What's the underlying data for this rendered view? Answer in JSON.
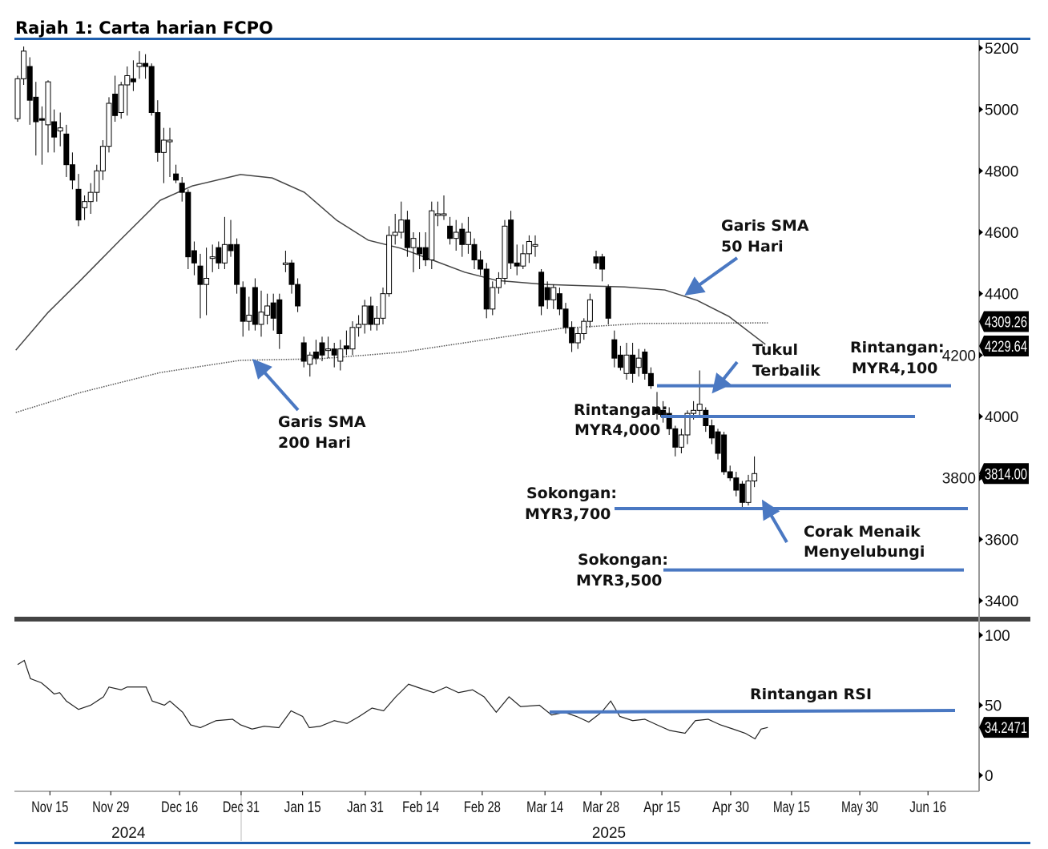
{
  "title": "Rajah 1: Carta harian FCPO",
  "colors": {
    "accent": "#1f5fae",
    "annotation": "#4a78c2",
    "candle_down": "#000000",
    "candle_up": "#ffffff"
  },
  "chart_data": {
    "type": "candlestick",
    "title": "Rajah 1: Carta harian FCPO",
    "price_axis": {
      "ylim": [
        3350,
        5230
      ],
      "ticks": [
        3400,
        3600,
        3800,
        4000,
        4200,
        4400,
        4600,
        4800,
        5000,
        5200
      ]
    },
    "rsi_axis": {
      "ylim": [
        0,
        100
      ],
      "ticks": [
        0,
        50,
        100
      ]
    },
    "value_tags": {
      "sma200": "4309.26",
      "sma50": "4229.64",
      "last_price": "3814.00",
      "rsi": "34.2471"
    },
    "x_labels": [
      {
        "label": "Nov 15",
        "index": 5.3
      },
      {
        "label": "Nov 29",
        "index": 15.3
      },
      {
        "label": "Dec 16",
        "index": 26.6
      },
      {
        "label": "Dec 31",
        "index": 36.7
      },
      {
        "label": "Jan 15",
        "index": 46.8
      },
      {
        "label": "Jan 31",
        "index": 57.1
      },
      {
        "label": "Feb 14",
        "index": 66.2
      },
      {
        "label": "Feb 28",
        "index": 76.3
      },
      {
        "label": "Mar 14",
        "index": 86.6
      },
      {
        "label": "Mar 28",
        "index": 95.8
      },
      {
        "label": "Apr 15",
        "index": 105.8
      },
      {
        "label": "Apr 30",
        "index": 117.1
      },
      {
        "label": "May 15",
        "index": 127.1
      },
      {
        "label": "May 30",
        "index": 138.3
      },
      {
        "label": "Jun 16",
        "index": 149.5
      }
    ],
    "years": [
      {
        "label": "2024",
        "index": 18.2
      },
      {
        "label": "2025",
        "index": 97.1
      }
    ],
    "candles_ohlc": [
      [
        4970,
        5110,
        4960,
        5100
      ],
      [
        5100,
        5205,
        5080,
        5190
      ],
      [
        5140,
        5170,
        4950,
        5030
      ],
      [
        5040,
        5090,
        4850,
        4960
      ],
      [
        4970,
        5010,
        4820,
        4965
      ],
      [
        4950,
        5095,
        4860,
        5090
      ],
      [
        4960,
        5000,
        4860,
        4910
      ],
      [
        4930,
        4990,
        4880,
        4940
      ],
      [
        4920,
        4950,
        4780,
        4820
      ],
      [
        4820,
        4860,
        4740,
        4770
      ],
      [
        4740,
        4790,
        4620,
        4640
      ],
      [
        4680,
        4720,
        4640,
        4700
      ],
      [
        4700,
        4760,
        4660,
        4730
      ],
      [
        4730,
        4820,
        4700,
        4800
      ],
      [
        4800,
        4900,
        4770,
        4880
      ],
      [
        4880,
        5040,
        4860,
        5020
      ],
      [
        5050,
        5110,
        4960,
        4980
      ],
      [
        4990,
        5090,
        4970,
        5080
      ],
      [
        5080,
        5140,
        4980,
        5110
      ],
      [
        5100,
        5160,
        5060,
        5090
      ],
      [
        5140,
        5190,
        5100,
        5150
      ],
      [
        5150,
        5180,
        5100,
        5140
      ],
      [
        5140,
        5150,
        4980,
        4990
      ],
      [
        4990,
        5030,
        4830,
        4860
      ],
      [
        4860,
        4940,
        4760,
        4900
      ],
      [
        4900,
        4940,
        4780,
        4900
      ],
      [
        4790,
        4820,
        4760,
        4770
      ],
      [
        4760,
        4780,
        4700,
        4730
      ],
      [
        4730,
        4740,
        4480,
        4520
      ],
      [
        4540,
        4570,
        4460,
        4500
      ],
      [
        4490,
        4530,
        4320,
        4430
      ],
      [
        4430,
        4550,
        4330,
        4450
      ],
      [
        4520,
        4560,
        4470,
        4520
      ],
      [
        4550,
        4570,
        4480,
        4500
      ],
      [
        4500,
        4650,
        4480,
        4560
      ],
      [
        4560,
        4640,
        4520,
        4540
      ],
      [
        4560,
        4580,
        4400,
        4430
      ],
      [
        4420,
        4440,
        4260,
        4310
      ],
      [
        4310,
        4390,
        4280,
        4330
      ],
      [
        4420,
        4450,
        4280,
        4300
      ],
      [
        4300,
        4410,
        4260,
        4340
      ],
      [
        4330,
        4400,
        4300,
        4360
      ],
      [
        4370,
        4400,
        4280,
        4320
      ],
      [
        4380,
        4400,
        4220,
        4270
      ],
      [
        4500,
        4540,
        4470,
        4500
      ],
      [
        4500,
        4510,
        4400,
        4430
      ],
      [
        4430,
        4450,
        4340,
        4360
      ],
      [
        4240,
        4260,
        4160,
        4180
      ],
      [
        4170,
        4210,
        4130,
        4200
      ],
      [
        4210,
        4250,
        4170,
        4190
      ],
      [
        4240,
        4260,
        4180,
        4200
      ],
      [
        4220,
        4260,
        4190,
        4220
      ],
      [
        4220,
        4240,
        4160,
        4200
      ],
      [
        4180,
        4250,
        4150,
        4220
      ],
      [
        4230,
        4280,
        4200,
        4220
      ],
      [
        4220,
        4310,
        4200,
        4290
      ],
      [
        4290,
        4330,
        4260,
        4300
      ],
      [
        4300,
        4380,
        4270,
        4360
      ],
      [
        4360,
        4390,
        4280,
        4300
      ],
      [
        4300,
        4360,
        4280,
        4320
      ],
      [
        4320,
        4420,
        4300,
        4400
      ],
      [
        4400,
        4620,
        4390,
        4590
      ],
      [
        4590,
        4660,
        4560,
        4600
      ],
      [
        4600,
        4700,
        4580,
        4640
      ],
      [
        4640,
        4670,
        4520,
        4550
      ],
      [
        4550,
        4600,
        4470,
        4580
      ],
      [
        4550,
        4600,
        4480,
        4530
      ],
      [
        4550,
        4600,
        4490,
        4510
      ],
      [
        4510,
        4700,
        4480,
        4670
      ],
      [
        4660,
        4700,
        4620,
        4660
      ],
      [
        4660,
        4720,
        4640,
        4660
      ],
      [
        4620,
        4650,
        4560,
        4580
      ],
      [
        4580,
        4640,
        4540,
        4600
      ],
      [
        4610,
        4630,
        4520,
        4560
      ],
      [
        4560,
        4650,
        4530,
        4600
      ],
      [
        4560,
        4580,
        4480,
        4510
      ],
      [
        4510,
        4540,
        4460,
        4480
      ],
      [
        4480,
        4500,
        4320,
        4350
      ],
      [
        4350,
        4440,
        4330,
        4420
      ],
      [
        4420,
        4470,
        4400,
        4450
      ],
      [
        4450,
        4640,
        4430,
        4620
      ],
      [
        4640,
        4670,
        4480,
        4500
      ],
      [
        4500,
        4560,
        4460,
        4490
      ],
      [
        4490,
        4560,
        4480,
        4530
      ],
      [
        4530,
        4590,
        4500,
        4570
      ],
      [
        4560,
        4590,
        4520,
        4560
      ],
      [
        4470,
        4480,
        4330,
        4360
      ],
      [
        4420,
        4440,
        4350,
        4380
      ],
      [
        4380,
        4430,
        4350,
        4420
      ],
      [
        4400,
        4420,
        4330,
        4350
      ],
      [
        4350,
        4370,
        4270,
        4290
      ],
      [
        4290,
        4310,
        4210,
        4240
      ],
      [
        4240,
        4290,
        4220,
        4270
      ],
      [
        4270,
        4320,
        4250,
        4310
      ],
      [
        4310,
        4400,
        4290,
        4380
      ],
      [
        4520,
        4540,
        4480,
        4500
      ],
      [
        4520,
        4530,
        4440,
        4480
      ],
      [
        4420,
        4430,
        4300,
        4320
      ],
      [
        4250,
        4280,
        4160,
        4190
      ],
      [
        4200,
        4230,
        4150,
        4160
      ],
      [
        4140,
        4240,
        4120,
        4200
      ],
      [
        4200,
        4240,
        4110,
        4140
      ],
      [
        4160,
        4220,
        4130,
        4190
      ],
      [
        4210,
        4220,
        4120,
        4140
      ],
      [
        4140,
        4160,
        4090,
        4100
      ],
      [
        4030,
        4080,
        3990,
        4010
      ],
      [
        4020,
        4050,
        3980,
        4000
      ],
      [
        4010,
        4030,
        3940,
        3960
      ],
      [
        3960,
        3970,
        3870,
        3900
      ],
      [
        3900,
        3960,
        3880,
        3940
      ],
      [
        3940,
        4020,
        3910,
        4010
      ],
      [
        4010,
        4050,
        3990,
        4020
      ],
      [
        4020,
        4150,
        4000,
        4040
      ],
      [
        4020,
        4030,
        3950,
        3970
      ],
      [
        3970,
        3990,
        3910,
        3930
      ],
      [
        3950,
        3960,
        3860,
        3880
      ],
      [
        3940,
        3950,
        3810,
        3820
      ],
      [
        3820,
        3840,
        3790,
        3800
      ],
      [
        3800,
        3820,
        3740,
        3760
      ],
      [
        3780,
        3790,
        3700,
        3720
      ],
      [
        3720,
        3810,
        3710,
        3790
      ],
      [
        3790,
        3870,
        3770,
        3814
      ]
    ],
    "sma50": [
      [
        -0.3,
        4216
      ],
      [
        5,
        4339
      ],
      [
        10.3,
        4443
      ],
      [
        16.8,
        4574
      ],
      [
        23.4,
        4704
      ],
      [
        28.7,
        4751
      ],
      [
        36.6,
        4788
      ],
      [
        41.8,
        4777
      ],
      [
        47.1,
        4730
      ],
      [
        52.4,
        4639
      ],
      [
        57.6,
        4574
      ],
      [
        62.9,
        4548
      ],
      [
        68.2,
        4509
      ],
      [
        73.4,
        4470
      ],
      [
        78.7,
        4443
      ],
      [
        86.6,
        4430
      ],
      [
        94.5,
        4425
      ],
      [
        99.7,
        4422
      ],
      [
        106.3,
        4412
      ],
      [
        111.6,
        4378
      ],
      [
        116.8,
        4326
      ],
      [
        122.8,
        4235
      ]
    ],
    "sma200": [
      [
        -0.3,
        4013
      ],
      [
        10.3,
        4078
      ],
      [
        23.4,
        4143
      ],
      [
        36.6,
        4183
      ],
      [
        49.7,
        4188
      ],
      [
        62.9,
        4209
      ],
      [
        76.1,
        4248
      ],
      [
        89.2,
        4287
      ],
      [
        102.4,
        4303
      ],
      [
        123.2,
        4305
      ]
    ],
    "rsi": [
      [
        0,
        79
      ],
      [
        1.1,
        82
      ],
      [
        2.1,
        69
      ],
      [
        3.9,
        66
      ],
      [
        5,
        62
      ],
      [
        6,
        58
      ],
      [
        6.9,
        59
      ],
      [
        8,
        53
      ],
      [
        10,
        47
      ],
      [
        12,
        50
      ],
      [
        14.1,
        56
      ],
      [
        15,
        63
      ],
      [
        17,
        61
      ],
      [
        18,
        63
      ],
      [
        20,
        63
      ],
      [
        21.1,
        63
      ],
      [
        22.1,
        53
      ],
      [
        24.1,
        50
      ],
      [
        25,
        53
      ],
      [
        27.1,
        45
      ],
      [
        28.4,
        36
      ],
      [
        30,
        34
      ],
      [
        32.6,
        39
      ],
      [
        35.3,
        40
      ],
      [
        36.6,
        36
      ],
      [
        38.5,
        33
      ],
      [
        40.5,
        35
      ],
      [
        42.9,
        34
      ],
      [
        44.9,
        46
      ],
      [
        46.8,
        42
      ],
      [
        47.9,
        34
      ],
      [
        49.7,
        35
      ],
      [
        52,
        39
      ],
      [
        54.1,
        37
      ],
      [
        56.1,
        42
      ],
      [
        58.2,
        48
      ],
      [
        60.1,
        46
      ],
      [
        62.1,
        56
      ],
      [
        64.2,
        65
      ],
      [
        66.2,
        62
      ],
      [
        68.3,
        59
      ],
      [
        70.4,
        63
      ],
      [
        72.4,
        59
      ],
      [
        74.7,
        61
      ],
      [
        76.6,
        56
      ],
      [
        78.6,
        45
      ],
      [
        80.7,
        56
      ],
      [
        82.6,
        49
      ],
      [
        85.7,
        50
      ],
      [
        87.7,
        43
      ],
      [
        89.8,
        45
      ],
      [
        91.8,
        42
      ],
      [
        93.8,
        38
      ],
      [
        95.9,
        45
      ],
      [
        97.4,
        53
      ],
      [
        98.9,
        42
      ],
      [
        101,
        39
      ],
      [
        103.0,
        40
      ],
      [
        105,
        36
      ],
      [
        107.1,
        32
      ],
      [
        109.6,
        30
      ],
      [
        111.3,
        39
      ],
      [
        113.4,
        40
      ],
      [
        115.4,
        36
      ],
      [
        117.5,
        33
      ],
      [
        119.5,
        30
      ],
      [
        121.1,
        26
      ],
      [
        122.1,
        33
      ],
      [
        123.2,
        34.2
      ]
    ]
  },
  "levels": {
    "resistance_4100": {
      "label_1": "Rintangan:",
      "label_2": "MYR4,100",
      "price": 4100
    },
    "resistance_4000": {
      "label_1": "Rintangan:",
      "label_2": "MYR4,000",
      "price": 4000
    },
    "support_3700": {
      "label_1": "Sokongan:",
      "label_2": "MYR3,700",
      "price": 3700
    },
    "support_3500": {
      "label_1": "Sokongan:",
      "label_2": "MYR3,500",
      "price": 3500
    },
    "rsi_resistance": {
      "label": "Rintangan RSI",
      "value": 46
    }
  },
  "annotations": {
    "sma50": {
      "line1": "Garis SMA",
      "line2": "50 Hari"
    },
    "sma200": {
      "line1": "Garis SMA",
      "line2": "200 Hari"
    },
    "inverted_hammer": {
      "line1": "Tukul",
      "line2": "Terbalik"
    },
    "bullish_engulfing": {
      "line1": "Corak Menaik",
      "line2": "Menyelubungi"
    }
  }
}
